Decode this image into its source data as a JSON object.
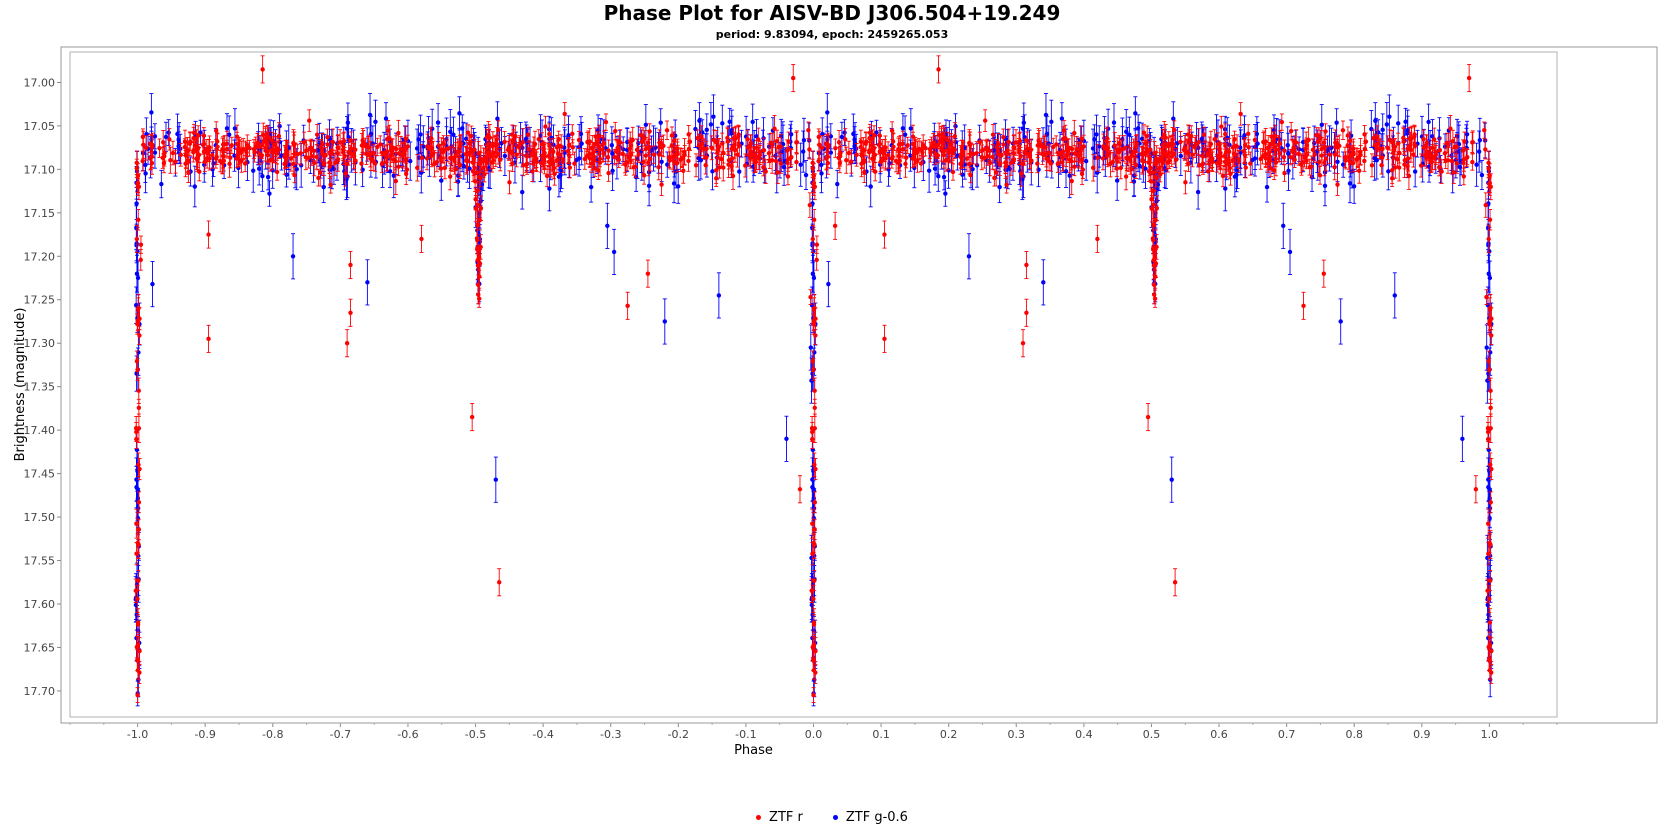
{
  "chart_data": {
    "type": "scatter",
    "title": "Phase Plot for AISV-BD J306.504+19.249",
    "subtitle": "period: 9.83094, epoch: 2459265.053",
    "xlabel": "Phase",
    "ylabel": "Brightness (magnitude)",
    "xlim": [
      -1.1,
      1.1
    ],
    "ylim": [
      16.965,
      17.73
    ],
    "y_inverted": true,
    "x_ticks": [
      -1.0,
      -0.9,
      -0.8,
      -0.7,
      -0.6,
      -0.5,
      -0.4,
      -0.3,
      -0.2,
      -0.1,
      0.0,
      0.1,
      0.2,
      0.3,
      0.4,
      0.5,
      0.6,
      0.7,
      0.8,
      0.9,
      1.0
    ],
    "x_tick_labels": [
      "-1.0",
      "-0.9",
      "-0.8",
      "-0.7",
      "-0.6",
      "-0.5",
      "-0.4",
      "-0.3",
      "-0.2",
      "-0.1",
      "0.0",
      "0.1",
      "0.2",
      "0.3",
      "0.4",
      "0.5",
      "0.6",
      "0.7",
      "0.8",
      "0.9",
      "1.0"
    ],
    "y_ticks": [
      17.0,
      17.05,
      17.1,
      17.15,
      17.2,
      17.25,
      17.3,
      17.35,
      17.4,
      17.45,
      17.5,
      17.55,
      17.6,
      17.65,
      17.7
    ],
    "y_tick_labels": [
      "17.00",
      "17.05",
      "17.10",
      "17.15",
      "17.20",
      "17.25",
      "17.30",
      "17.35",
      "17.40",
      "17.45",
      "17.50",
      "17.55",
      "17.60",
      "17.65",
      "17.70"
    ],
    "grid": false,
    "legend_position": "bottom-center",
    "baseline_magnitude": 17.08,
    "primary_eclipse": {
      "phase": 0.0,
      "depth_magnitude": 17.7,
      "half_width_phase": 0.006
    },
    "secondary_eclipse": {
      "phase": 0.505,
      "depth_magnitude": 17.25,
      "half_width_phase": 0.007
    },
    "series": [
      {
        "name": "ZTF r",
        "color": "#ff0000",
        "n_points_per_cycle": 600,
        "scatter_sigma": 0.022,
        "error_bar_typical": 0.012,
        "outliers": [
          [
            0.185,
            16.985
          ],
          [
            -0.815,
            16.985
          ],
          [
            0.032,
            17.165
          ],
          [
            0.105,
            17.295
          ],
          [
            -0.895,
            17.295
          ],
          [
            0.105,
            17.175
          ],
          [
            -0.895,
            17.175
          ],
          [
            0.31,
            17.3
          ],
          [
            -0.69,
            17.3
          ],
          [
            0.315,
            17.265
          ],
          [
            -0.685,
            17.265
          ],
          [
            0.315,
            17.21
          ],
          [
            -0.685,
            17.21
          ],
          [
            0.495,
            17.385
          ],
          [
            -0.505,
            17.385
          ],
          [
            0.535,
            17.575
          ],
          [
            -0.465,
            17.575
          ],
          [
            0.725,
            17.257
          ],
          [
            -0.275,
            17.257
          ],
          [
            0.755,
            17.22
          ],
          [
            -0.245,
            17.22
          ],
          [
            0.98,
            17.468
          ],
          [
            -0.02,
            17.468
          ],
          [
            -0.03,
            16.995
          ],
          [
            0.97,
            16.995
          ],
          [
            0.42,
            17.18
          ],
          [
            -0.58,
            17.18
          ]
        ]
      },
      {
        "name": "ZTF g-0.6",
        "color": "#0000ff",
        "n_points_per_cycle": 300,
        "scatter_sigma": 0.03,
        "error_bar_typical": 0.02,
        "outliers": [
          [
            0.23,
            17.2
          ],
          [
            -0.77,
            17.2
          ],
          [
            0.34,
            17.23
          ],
          [
            -0.66,
            17.23
          ],
          [
            0.53,
            17.457
          ],
          [
            -0.47,
            17.457
          ],
          [
            0.705,
            17.195
          ],
          [
            -0.295,
            17.195
          ],
          [
            0.78,
            17.275
          ],
          [
            -0.22,
            17.275
          ],
          [
            0.86,
            17.245
          ],
          [
            -0.14,
            17.245
          ],
          [
            0.96,
            17.41
          ],
          [
            -0.04,
            17.41
          ],
          [
            0.996,
            17.305
          ],
          [
            -0.004,
            17.305
          ],
          [
            0.997,
            17.343
          ],
          [
            -0.003,
            17.343
          ],
          [
            0.997,
            17.547
          ],
          [
            -0.003,
            17.547
          ],
          [
            0.022,
            17.232
          ],
          [
            -0.978,
            17.232
          ],
          [
            0.695,
            17.165
          ],
          [
            -0.305,
            17.165
          ]
        ]
      }
    ]
  },
  "legend": {
    "items": [
      {
        "label": "ZTF r",
        "color": "#ff0000"
      },
      {
        "label": "ZTF g-0.6",
        "color": "#0000ff"
      }
    ]
  }
}
